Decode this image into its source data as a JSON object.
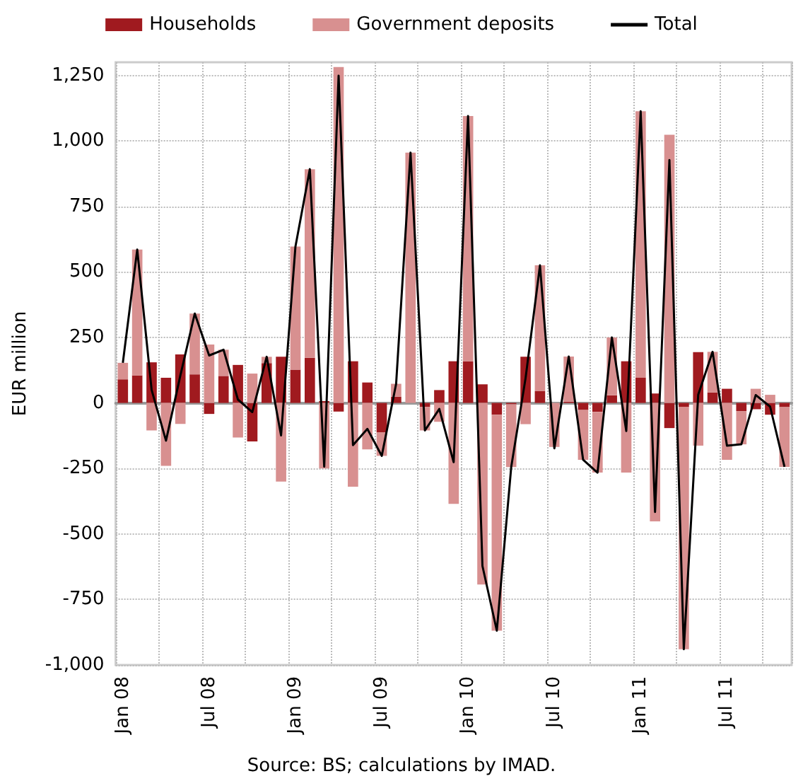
{
  "chart_data": {
    "type": "bar",
    "stacked": true,
    "ylabel": "EUR million",
    "annotations": [
      "Source: BS; calculations by IMAD."
    ],
    "categories": [
      "Jan 08",
      null,
      null,
      null,
      null,
      null,
      "Jul 08",
      null,
      null,
      null,
      null,
      null,
      "Jan 09",
      null,
      null,
      null,
      null,
      null,
      "Jul 09",
      null,
      null,
      null,
      null,
      null,
      "Jan 10",
      null,
      null,
      null,
      null,
      null,
      "Jul 10",
      null,
      null,
      null,
      null,
      null,
      "Jan 11",
      null,
      null,
      null,
      null,
      null,
      "Jul 11",
      null,
      null,
      null,
      null
    ],
    "series": [
      {
        "name": "Households",
        "color": "#a01a1f",
        "values": [
          90,
          105,
          155,
          96,
          185,
          109,
          -42,
          103,
          145,
          -147,
          152,
          176,
          127,
          172,
          7,
          -33,
          159,
          78,
          -112,
          24,
          0,
          -15,
          49,
          159,
          159,
          71,
          -45,
          -5,
          176,
          45,
          null,
          5,
          -27,
          -34,
          29,
          159,
          96,
          36,
          -96,
          -15,
          194,
          40,
          54,
          -31,
          -24,
          -45,
          -16
        ]
      },
      {
        "name": "Government deposits",
        "color": "#d89090",
        "values": [
          63,
          480,
          -105,
          -240,
          -80,
          232,
          223,
          100,
          -132,
          112,
          24,
          -300,
          470,
          720,
          -250,
          1282,
          -320,
          -177,
          -90,
          49,
          955,
          -90,
          -72,
          -385,
          936,
          -693,
          -824,
          -240,
          -81,
          480,
          -168,
          172,
          -190,
          -232,
          221,
          -266,
          1017,
          -452,
          1023,
          -925,
          -163,
          155,
          -217,
          -127,
          54,
          31,
          -228
        ]
      },
      {
        "name": "Total",
        "type": "line",
        "color": "#000000",
        "values": [
          153,
          585,
          50,
          -144,
          105,
          341,
          181,
          203,
          13,
          -35,
          176,
          -124,
          597,
          892,
          -243,
          1249,
          -161,
          -99,
          -202,
          73,
          955,
          -105,
          -23,
          -226,
          1095,
          -622,
          -869,
          -245,
          95,
          525,
          -173,
          177,
          -217,
          -266,
          250,
          -107,
          1113,
          -416,
          927,
          -940,
          31,
          195,
          -163,
          -158,
          30,
          -14,
          -244
        ]
      }
    ],
    "ylim": [
      -1000,
      1300
    ],
    "yticks": [
      {
        "value": -1000,
        "label": "-1,000"
      },
      -750,
      -500,
      -250,
      0,
      250,
      500,
      750,
      {
        "value": 1000,
        "label": "1,000"
      },
      {
        "value": 1250,
        "label": "1,250"
      }
    ],
    "grid": true,
    "legend": "top",
    "marker": "none",
    "line_style": "solid"
  }
}
